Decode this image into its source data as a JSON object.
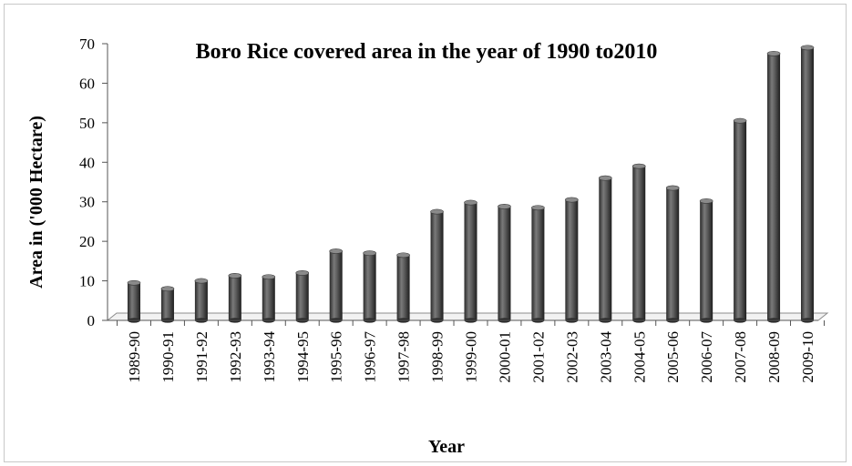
{
  "chart_data": {
    "type": "bar",
    "title": "Boro Rice covered area in the year of 1990 to2010",
    "xlabel": "Year",
    "ylabel": "Area in ('000 Hectare)",
    "ylim": [
      0,
      70
    ],
    "yticks": [
      0,
      10,
      20,
      30,
      40,
      50,
      60,
      70
    ],
    "grid": false,
    "categories": [
      "1989-90",
      "1990-91",
      "1991-92",
      "1992-93",
      "1993-94",
      "1994-95",
      "1995-96",
      "1996-97",
      "1997-98",
      "1998-99",
      "1999-00",
      "2000-01",
      "2001-02",
      "2002-03",
      "2003-04",
      "2004-05",
      "2005-06",
      "2006-07",
      "2007-08",
      "2008-09",
      "2009-10"
    ],
    "values": [
      9.5,
      8.0,
      10.0,
      11.3,
      11.0,
      12.0,
      17.5,
      17.0,
      16.5,
      27.5,
      29.8,
      28.8,
      28.5,
      30.5,
      36.0,
      39.0,
      33.5,
      30.2,
      50.5,
      67.5,
      69.0
    ],
    "bar_color": "#4a4a4a"
  }
}
